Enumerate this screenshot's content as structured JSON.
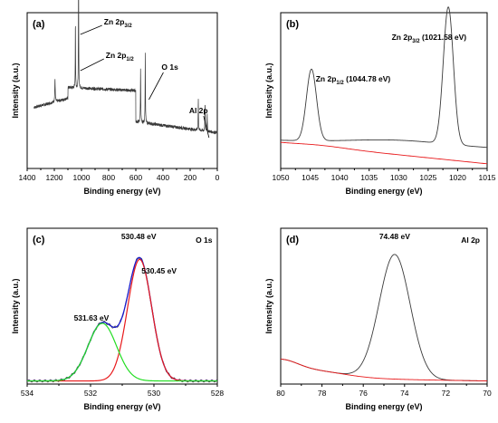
{
  "panels": [
    {
      "tag": "(a)",
      "xlabel": "Binding energy (eV)",
      "ylabel": "Intensity (a.u.)",
      "xlim": [
        1400,
        0
      ],
      "xticks": [
        "1400",
        "1200",
        "1000",
        "800",
        "600",
        "400",
        "200",
        "0"
      ],
      "annotations": [
        {
          "main": "Zn 2p",
          "sub": "3/2",
          "post": ""
        },
        {
          "main": "Zn 2p",
          "sub": "1/2",
          "post": ""
        },
        {
          "main": "O 1s",
          "sub": "",
          "post": ""
        },
        {
          "main": "Al 2p",
          "sub": "",
          "post": ""
        }
      ]
    },
    {
      "tag": "(b)",
      "xlabel": "Binding energy (eV)",
      "ylabel": "Intensity (a.u.)",
      "xlim": [
        1050,
        1015
      ],
      "xticks": [
        "1050",
        "1045",
        "1040",
        "1035",
        "1030",
        "1025",
        "1020",
        "1015"
      ],
      "annotations": [
        {
          "main": "Zn 2p",
          "sub": "3/2",
          "post": " (1021.58 eV)"
        },
        {
          "main": "Zn 2p",
          "sub": "1/2",
          "post": " (1044.78 eV)"
        }
      ]
    },
    {
      "tag": "(c)",
      "xlabel": "Binding energy (eV)",
      "ylabel": "Intensity (a.u.)",
      "xlim": [
        534,
        528
      ],
      "xticks": [
        "534",
        "532",
        "530",
        "528"
      ],
      "annotations": [
        {
          "main": "O 1s",
          "sub": "",
          "post": ""
        },
        {
          "main": "530.48 eV",
          "sub": "",
          "post": ""
        },
        {
          "main": "530.45 eV",
          "sub": "",
          "post": ""
        },
        {
          "main": "531.63 eV",
          "sub": "",
          "post": ""
        }
      ]
    },
    {
      "tag": "(d)",
      "xlabel": "Binding energy (eV)",
      "ylabel": "Intensity (a.u.)",
      "xlim": [
        80,
        70
      ],
      "xticks": [
        "80",
        "78",
        "76",
        "74",
        "72",
        "70"
      ],
      "annotations": [
        {
          "main": "74.48 eV",
          "sub": "",
          "post": ""
        },
        {
          "main": "Al 2p",
          "sub": "",
          "post": ""
        }
      ]
    }
  ],
  "colors": {
    "data": "#3a3a3a",
    "background": "#e8191b",
    "component_high": "#e8191b",
    "component_low": "#22dd22",
    "envelope": "#1a1acc"
  },
  "chart_data": [
    {
      "type": "line",
      "title": "",
      "xlabel": "Binding energy (eV)",
      "ylabel": "Intensity (a.u.)",
      "xlim": [
        1400,
        0
      ],
      "grid": false,
      "peaks": [
        {
          "label": "Zn 2p3/2",
          "x": 1021.58
        },
        {
          "label": "Zn 2p1/2",
          "x": 1044.78
        },
        {
          "label": "O 1s",
          "x": 530.48
        },
        {
          "label": "Al 2p",
          "x": 74.48
        }
      ]
    },
    {
      "type": "line",
      "title": "",
      "xlabel": "Binding energy (eV)",
      "ylabel": "Intensity (a.u.)",
      "xlim": [
        1050,
        1015
      ],
      "grid": false,
      "peaks": [
        {
          "label": "Zn 2p3/2",
          "x": 1021.58
        },
        {
          "label": "Zn 2p1/2",
          "x": 1044.78
        }
      ]
    },
    {
      "type": "line",
      "title": "",
      "xlabel": "Binding energy (eV)",
      "ylabel": "Intensity (a.u.)",
      "xlim": [
        534,
        528
      ],
      "grid": false,
      "peaks": [
        {
          "label": "530.48 eV",
          "x": 530.48
        },
        {
          "label": "530.45 eV",
          "x": 530.45
        },
        {
          "label": "531.63 eV",
          "x": 531.63
        }
      ]
    },
    {
      "type": "line",
      "title": "",
      "xlabel": "Binding energy (eV)",
      "ylabel": "Intensity (a.u.)",
      "xlim": [
        80,
        70
      ],
      "grid": false,
      "peaks": [
        {
          "label": "74.48 eV",
          "x": 74.48
        }
      ]
    }
  ]
}
